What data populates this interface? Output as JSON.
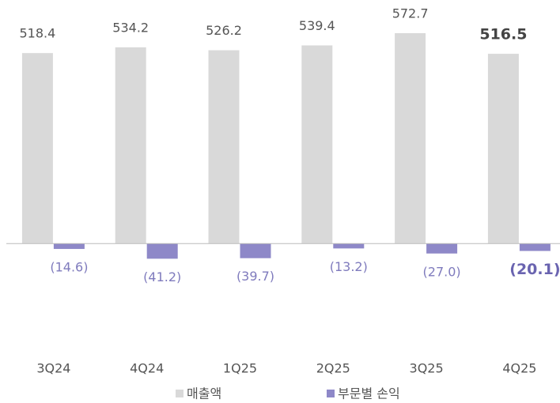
{
  "chart_data": {
    "type": "bar",
    "categories": [
      "3Q24",
      "4Q24",
      "1Q25",
      "2Q25",
      "3Q25",
      "4Q25"
    ],
    "series": [
      {
        "name": "매출액",
        "color": "#d9d9d9",
        "values": [
          518.4,
          534.2,
          526.2,
          539.4,
          572.7,
          516.5
        ]
      },
      {
        "name": "부문별 손익",
        "color": "#8e88c8",
        "values": [
          -14.6,
          -41.2,
          -39.7,
          -13.2,
          -27.0,
          -20.1
        ],
        "value_labels": [
          "(14.6)",
          "(41.2)",
          "(39.7)",
          "(13.2)",
          "(27.0)",
          "(20.1)"
        ]
      }
    ],
    "ylim": [
      -150,
      650
    ],
    "legend": "bottom"
  }
}
